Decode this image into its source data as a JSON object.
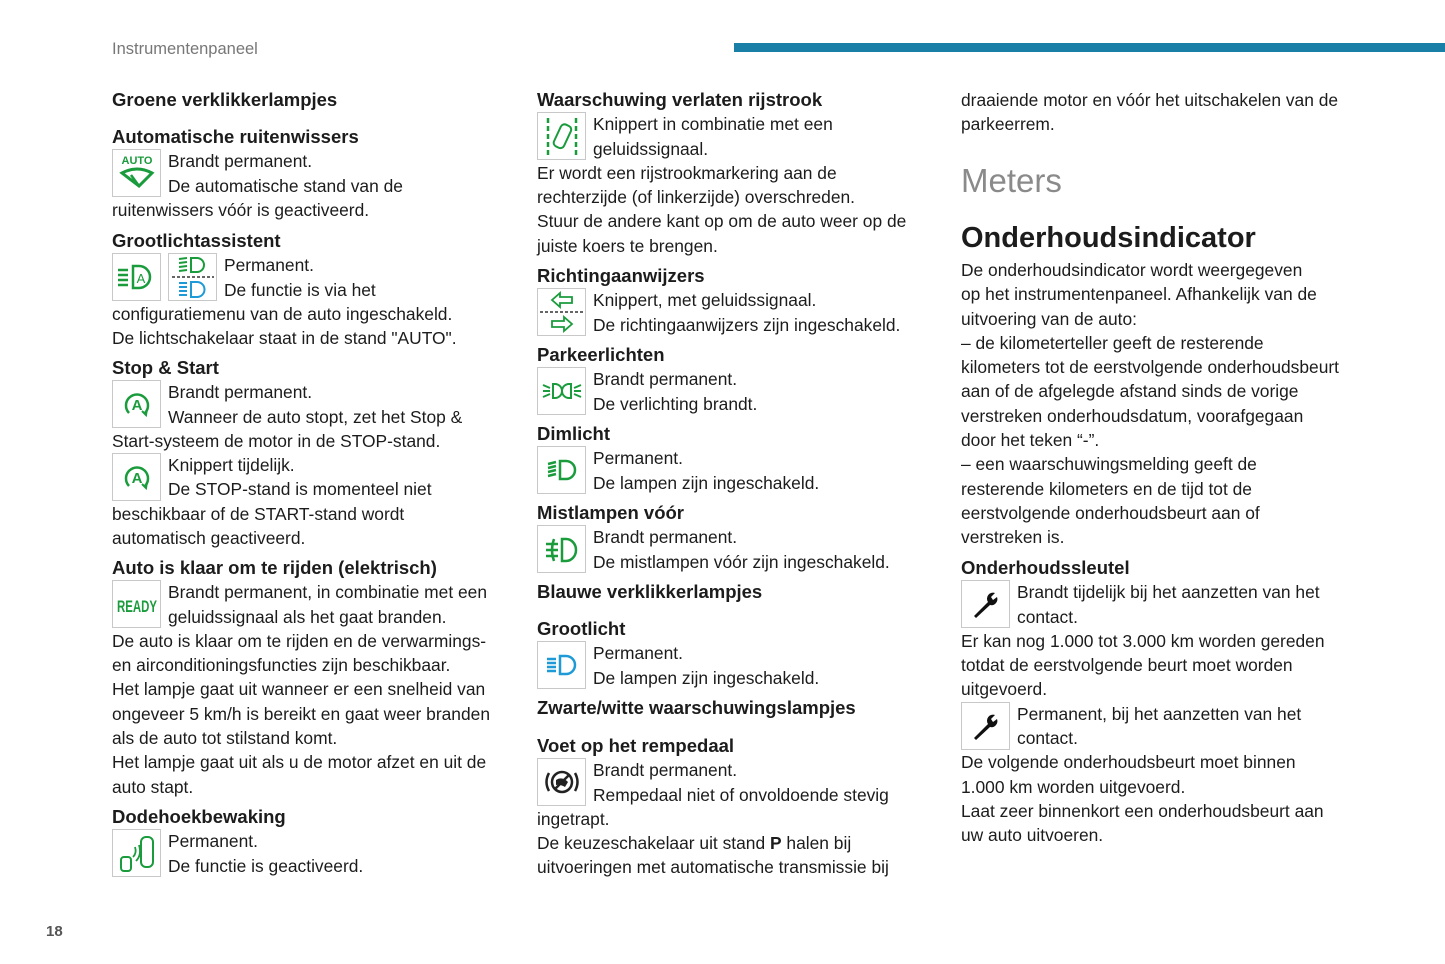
{
  "header": {
    "section": "Instrumentenpaneel",
    "page": "18"
  },
  "colors": {
    "green": "#1a9b3c",
    "blue": "#1e9ad6",
    "accent": "#1a7fa6"
  },
  "col1": {
    "title": "Groene verklikkerlampjes",
    "s1": {
      "h": "Automatische ruitenwissers",
      "icon_text": "AUTO",
      "l": [
        "Brandt permanent.",
        "De automatische stand van de",
        "ruitenwissers vóór is geactiveerd."
      ]
    },
    "s2": {
      "h": "Grootlichtassistent",
      "l": [
        "Permanent.",
        "De functie is via het",
        "configuratiemenu van de auto ingeschakeld.",
        "De lichtschakelaar staat in de stand \"AUTO\"."
      ]
    },
    "s3": {
      "h": "Stop & Start",
      "l": [
        "Brandt permanent.",
        "Wanneer de auto stopt, zet het Stop &",
        "Start-systeem de motor in de STOP-stand."
      ],
      "l2": [
        "Knippert tijdelijk.",
        "De STOP-stand is momenteel niet",
        "beschikbaar of de START-stand wordt",
        "automatisch geactiveerd."
      ]
    },
    "s4": {
      "h": "Auto is klaar om te rijden (elektrisch)",
      "icon_text": "READY",
      "l": [
        "Brandt permanent, in combinatie met een",
        "geluidssignaal als het gaat branden.",
        "De auto is klaar om te rijden en de verwarmings-",
        "en airconditioningsfuncties zijn beschikbaar.",
        "Het lampje gaat uit wanneer er een snelheid van",
        "ongeveer 5 km/h is bereikt en gaat weer branden",
        "als de auto tot stilstand komt.",
        "Het lampje gaat uit als u de motor afzet en uit de",
        "auto stapt."
      ]
    },
    "s5": {
      "h": "Dodehoekbewaking",
      "l": [
        "Permanent.",
        "De functie is geactiveerd."
      ]
    }
  },
  "col2": {
    "s1": {
      "h": "Waarschuwing verlaten rijstrook",
      "l": [
        "Knippert in combinatie met een",
        "geluidssignaal.",
        "Er wordt een rijstrookmarkering aan de",
        "rechterzijde (of linkerzijde) overschreden.",
        "Stuur de andere kant op om de auto weer op de",
        "juiste koers te brengen."
      ]
    },
    "s2": {
      "h": "Richtingaanwijzers",
      "l": [
        "Knippert, met geluidssignaal.",
        "De richtingaanwijzers zijn ingeschakeld."
      ]
    },
    "s3": {
      "h": "Parkeerlichten",
      "l": [
        "Brandt permanent.",
        "De verlichting brandt."
      ]
    },
    "s4": {
      "h": "Dimlicht",
      "l": [
        "Permanent.",
        "De lampen zijn ingeschakeld."
      ]
    },
    "s5": {
      "h": "Mistlampen vóór",
      "l": [
        "Brandt permanent.",
        "De mistlampen vóór zijn ingeschakeld."
      ]
    },
    "blue_title": "Blauwe verklikkerlampjes",
    "s6": {
      "h": "Grootlicht",
      "l": [
        "Permanent.",
        "De lampen zijn ingeschakeld."
      ]
    },
    "bw_title": "Zwarte/witte waarschuwingslampjes",
    "s7": {
      "h": "Voet op het rempedaal",
      "l": [
        "Brandt permanent.",
        "Rempedaal niet of onvoldoende stevig",
        "ingetrapt."
      ],
      "l4a": "De keuzeschakelaar uit stand ",
      "l4b": "P",
      "l4c": " halen bij",
      "l5": "uitvoeringen met automatische transmissie bij"
    }
  },
  "col3": {
    "l0": [
      "draaiende motor en vóór het uitschakelen van de",
      "parkeerrem."
    ],
    "meters": "Meters",
    "title": "Onderhoudsindicator",
    "l": [
      "De onderhoudsindicator wordt weergegeven",
      "op het instrumentenpaneel. Afhankelijk van de",
      "uitvoering van de auto:",
      "–  de kilometerteller geeft de resterende",
      "kilometers tot de eerstvolgende onderhoudsbeurt",
      "aan of de afgelegde afstand sinds de vorige",
      "verstreken onderhoudsdatum, voorafgegaan",
      "door het teken “-”.",
      "–  een waarschuwingsmelding geeft de",
      "resterende kilometers en de tijd tot de",
      "eerstvolgende onderhoudsbeurt aan of",
      "verstreken is."
    ],
    "s1": {
      "h": "Onderhoudssleutel",
      "l": [
        "Brandt tijdelijk bij het aanzetten van het",
        "contact.",
        "Er kan nog 1.000 tot 3.000 km worden gereden",
        "totdat de eerstvolgende beurt moet worden",
        "uitgevoerd."
      ],
      "l2": [
        "Permanent, bij het aanzetten van het",
        "contact.",
        "De volgende onderhoudsbeurt moet binnen",
        "1.000 km worden uitgevoerd.",
        "Laat zeer binnenkort een onderhoudsbeurt aan",
        "uw auto uitvoeren."
      ]
    }
  }
}
